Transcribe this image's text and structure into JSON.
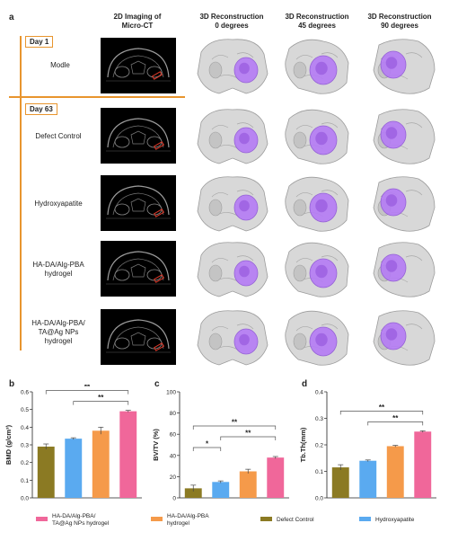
{
  "panel_a": {
    "letter": "a",
    "column_headers": [
      "2D Imaging of\nMicro-CT",
      "3D Reconstruction\n0 degrees",
      "3D Reconstruction\n45 degrees",
      "3D Reconstruction\n90 degrees"
    ],
    "day_labels": [
      "Day 1",
      "Day 63"
    ],
    "rows": [
      {
        "label": "Modle"
      },
      {
        "label": "Defect Control"
      },
      {
        "label": "Hydroxyapatite"
      },
      {
        "label": "HA-DA/Alg-PBA\nhydrogel"
      },
      {
        "label": "HA-DA/Alg-PBA/\nTA@Ag NPs\nhydrogel"
      }
    ],
    "colors": {
      "accent": "#e8952e",
      "implant": "#b57cf5",
      "bone": "#d8d8d8",
      "marker": "#e03a2a"
    }
  },
  "charts": [
    {
      "letter": "b",
      "ylabel": "BMD (g/cm³)"
    },
    {
      "letter": "c",
      "ylabel": "BV/TV (%)"
    },
    {
      "letter": "d",
      "ylabel": "Tb.Th(mm)"
    }
  ],
  "chart_data": [
    {
      "type": "bar",
      "ylabel": "BMD (g/cm³)",
      "ylim": [
        0,
        0.6
      ],
      "yticks": [
        "0.0",
        "0.1",
        "0.2",
        "0.3",
        "0.4",
        "0.5",
        "0.6"
      ],
      "categories": [
        "Defect Control",
        "Hydroxyapatite",
        "HA-DA/Alg-PBA hydrogel",
        "HA-DA/Alg-PBA/TA@Ag NPs hydrogel"
      ],
      "values": [
        0.29,
        0.335,
        0.38,
        0.49
      ],
      "errors": [
        0.015,
        0.005,
        0.02,
        0.005
      ],
      "significance": [
        {
          "from": 0,
          "to": 3,
          "label": "**"
        },
        {
          "from": 1,
          "to": 3,
          "label": "**"
        }
      ]
    },
    {
      "type": "bar",
      "ylabel": "BV/TV (%)",
      "ylim": [
        0,
        100
      ],
      "yticks": [
        "0",
        "20",
        "40",
        "60",
        "80",
        "100"
      ],
      "categories": [
        "Defect Control",
        "Hydroxyapatite",
        "HA-DA/Alg-PBA hydrogel",
        "HA-DA/Alg-PBA/TA@Ag NPs hydrogel"
      ],
      "values": [
        9,
        15,
        25,
        38
      ],
      "errors": [
        3,
        1,
        2,
        1
      ],
      "significance": [
        {
          "from": 0,
          "to": 1,
          "label": "*"
        },
        {
          "from": 0,
          "to": 3,
          "label": "**"
        },
        {
          "from": 1,
          "to": 3,
          "label": "**"
        }
      ]
    },
    {
      "type": "bar",
      "ylabel": "Tb.Th(mm)",
      "ylim": [
        0,
        0.4
      ],
      "yticks": [
        "0.0",
        "0.1",
        "0.2",
        "0.3",
        "0.4"
      ],
      "categories": [
        "Defect Control",
        "Hydroxyapatite",
        "HA-DA/Alg-PBA hydrogel",
        "HA-DA/Alg-PBA/TA@Ag NPs hydrogel"
      ],
      "values": [
        0.115,
        0.14,
        0.195,
        0.25
      ],
      "errors": [
        0.01,
        0.003,
        0.003,
        0.003
      ],
      "significance": [
        {
          "from": 0,
          "to": 3,
          "label": "**"
        },
        {
          "from": 1,
          "to": 3,
          "label": "**"
        }
      ]
    }
  ],
  "legend": [
    {
      "label": "HA-DA/Alg-PBA/\nTA@Ag NPs hydrogel",
      "color": "#f0679a"
    },
    {
      "label": "HA-DA/Alg-PBA\nhydrogel",
      "color": "#f59a4a"
    },
    {
      "label": "Defect Control",
      "color": "#8b7a23"
    },
    {
      "label": "Hydroxyapatite",
      "color": "#5aaaf0"
    }
  ],
  "bar_colors": [
    "#8b7a23",
    "#5aaaf0",
    "#f59a4a",
    "#f0679a"
  ]
}
